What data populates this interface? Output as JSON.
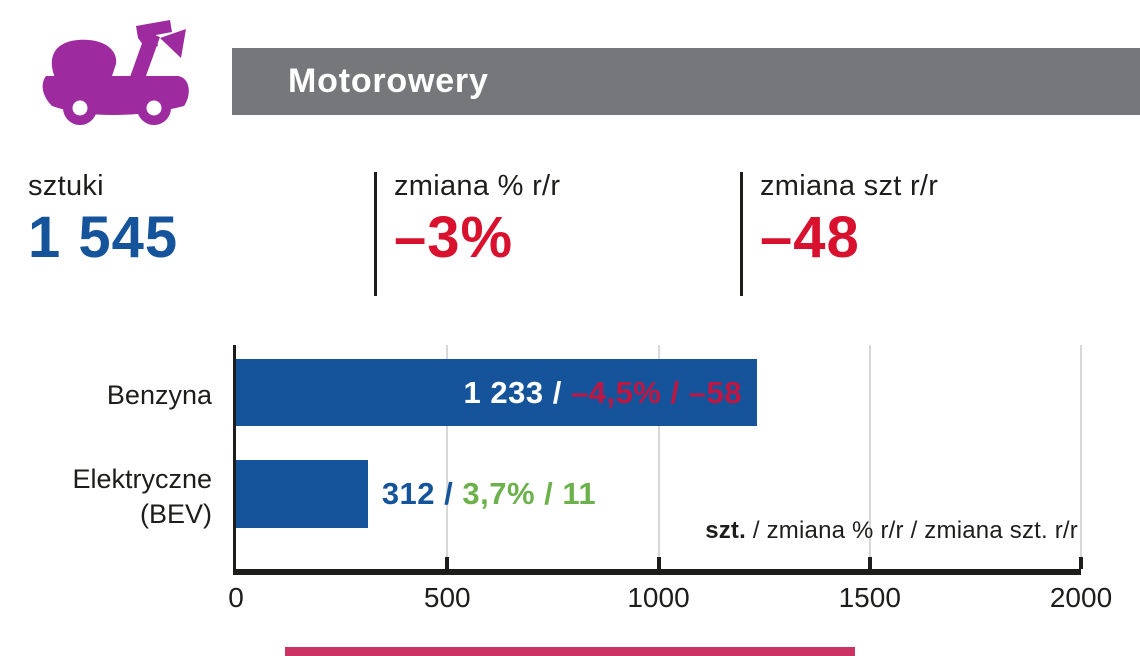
{
  "header": {
    "title": "Motorowery",
    "icon": "scooter-icon",
    "banner_color": "#76777a",
    "icon_color": "#9d2b9f",
    "title_color": "#ffffff"
  },
  "stats": {
    "items": [
      {
        "label": "sztuki",
        "value": "1 545",
        "value_color": "#15549b"
      },
      {
        "label": "zmiana % r/r",
        "value": "–3%",
        "value_color": "#d8112e"
      },
      {
        "label": "zmiana szt r/r",
        "value": "–48",
        "value_color": "#d8112e"
      }
    ]
  },
  "chart_data": {
    "type": "bar",
    "orientation": "horizontal",
    "categories": [
      "Benzyna",
      "Elektryczne (BEV)"
    ],
    "values": [
      1233,
      312
    ],
    "xlim": [
      0,
      2000
    ],
    "xticks": [
      0,
      500,
      1000,
      1500,
      2000
    ],
    "grid": "vertical-light-gray",
    "bar_color": "#15549b",
    "rows": [
      {
        "label_lines": [
          "Benzyna"
        ],
        "value": 1233,
        "units_text": "1 233 / ",
        "units_color": "#ffffff",
        "change_text": "–4,5% / –58",
        "change_color": "#c01540",
        "label_position": "inside"
      },
      {
        "label_lines": [
          "Elektryczne",
          "(BEV)"
        ],
        "value": 312,
        "units_text": "312 / ",
        "units_color": "#15549b",
        "change_text": "3,7% / 11",
        "change_color": "#6db14c",
        "label_position": "outside"
      }
    ],
    "legend": {
      "bold": "szt.",
      "rest": " / zmiana % r/r / zmiana szt. r/r"
    }
  },
  "footer": {
    "accent_bar_color": "#cb3365"
  }
}
